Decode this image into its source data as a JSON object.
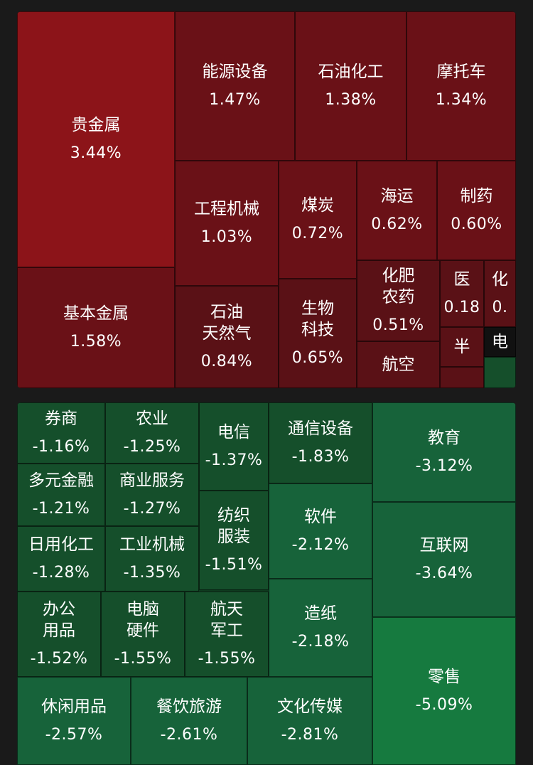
{
  "chart_data": {
    "type": "treemap",
    "colors": {
      "gain_strong": "#8c1419",
      "gain_mid": "#6a1117",
      "gain_weak": "#5a1116",
      "loss_weak": "#154f2b",
      "loss_mid": "#17633a",
      "loss_strong": "#167a3f",
      "text": "#ffffff"
    },
    "gainers": [
      {
        "label": "贵金属",
        "value": 3.44,
        "text": "3.44%"
      },
      {
        "label": "能源设备",
        "value": 1.47,
        "text": "1.47%"
      },
      {
        "label": "石油化工",
        "value": 1.38,
        "text": "1.38%"
      },
      {
        "label": "摩托车",
        "value": 1.34,
        "text": "1.34%"
      },
      {
        "label": "基本金属",
        "value": 1.58,
        "text": "1.58%"
      },
      {
        "label": "工程机械",
        "value": 1.03,
        "text": "1.03%"
      },
      {
        "label": "煤炭",
        "value": 0.72,
        "text": "0.72%"
      },
      {
        "label": "海运",
        "value": 0.62,
        "text": "0.62%"
      },
      {
        "label": "制药",
        "value": 0.6,
        "text": "0.60%"
      },
      {
        "label": "石油\n天然气",
        "value": 0.84,
        "text": "0.84%"
      },
      {
        "label": "生物\n科技",
        "value": 0.65,
        "text": "0.65%"
      },
      {
        "label": "化肥\n农药",
        "value": 0.51,
        "text": "0.51%"
      },
      {
        "label": "医",
        "value": null,
        "text": "0.18"
      },
      {
        "label": "化",
        "value": null,
        "text": "0."
      },
      {
        "label": "半",
        "value": null,
        "text": ""
      },
      {
        "label": "航空",
        "value": null,
        "text": ""
      },
      {
        "label": "",
        "value": null,
        "text": ""
      },
      {
        "label": "",
        "value": null,
        "text": ""
      }
    ],
    "neutral": [
      {
        "label": "电",
        "value": null,
        "text": ""
      }
    ],
    "losers": [
      {
        "label": "券商",
        "value": -1.16,
        "text": "-1.16%"
      },
      {
        "label": "农业",
        "value": -1.25,
        "text": "-1.25%"
      },
      {
        "label": "电信",
        "value": -1.37,
        "text": "-1.37%"
      },
      {
        "label": "通信设备",
        "value": -1.83,
        "text": "-1.83%"
      },
      {
        "label": "教育",
        "value": -3.12,
        "text": "-3.12%"
      },
      {
        "label": "多元金融",
        "value": -1.21,
        "text": "-1.21%"
      },
      {
        "label": "商业服务",
        "value": -1.27,
        "text": "-1.27%"
      },
      {
        "label": "纺织\n服装",
        "value": -1.51,
        "text": "-1.51%"
      },
      {
        "label": "软件",
        "value": -2.12,
        "text": "-2.12%"
      },
      {
        "label": "互联网",
        "value": -3.64,
        "text": "-3.64%"
      },
      {
        "label": "日用化工",
        "value": -1.28,
        "text": "-1.28%"
      },
      {
        "label": "工业机械",
        "value": -1.35,
        "text": "-1.35%"
      },
      {
        "label": "办公\n用品",
        "value": -1.52,
        "text": "-1.52%"
      },
      {
        "label": "电脑\n硬件",
        "value": -1.55,
        "text": "-1.55%"
      },
      {
        "label": "航天\n军工",
        "value": -1.55,
        "text": "-1.55%"
      },
      {
        "label": "造纸",
        "value": -2.18,
        "text": "-2.18%"
      },
      {
        "label": "零售",
        "value": -5.09,
        "text": "-5.09%"
      },
      {
        "label": "休闲用品",
        "value": -2.57,
        "text": "-2.57%"
      },
      {
        "label": "餐饮旅游",
        "value": -2.61,
        "text": "-2.61%"
      },
      {
        "label": "文化传媒",
        "value": -2.81,
        "text": "-2.81%"
      }
    ]
  }
}
